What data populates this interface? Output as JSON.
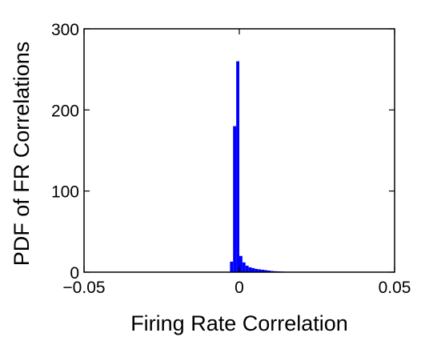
{
  "chart_data": {
    "type": "bar",
    "title": "",
    "xlabel": "Firing Rate Correlation",
    "ylabel": "PDF of FR Correlations",
    "xlim": [
      -0.05,
      0.05
    ],
    "ylim": [
      0,
      300
    ],
    "xticks": [
      -0.05,
      0,
      0.05
    ],
    "xtick_labels": [
      "−0.05",
      "0",
      "0.05"
    ],
    "yticks": [
      0,
      100,
      200,
      300
    ],
    "ytick_labels": [
      "0",
      "100",
      "200",
      "300"
    ],
    "bar_color": "#0000ff",
    "bins": [
      {
        "x0": -0.003,
        "x1": -0.002,
        "value": 13
      },
      {
        "x0": -0.002,
        "x1": -0.001,
        "value": 180
      },
      {
        "x0": -0.001,
        "x1": 0.0,
        "value": 260
      },
      {
        "x0": 0.0,
        "x1": 0.001,
        "value": 20
      },
      {
        "x0": 0.001,
        "x1": 0.002,
        "value": 12
      },
      {
        "x0": 0.002,
        "x1": 0.003,
        "value": 8
      },
      {
        "x0": 0.003,
        "x1": 0.004,
        "value": 6
      },
      {
        "x0": 0.004,
        "x1": 0.005,
        "value": 5
      },
      {
        "x0": 0.005,
        "x1": 0.006,
        "value": 4
      },
      {
        "x0": 0.006,
        "x1": 0.007,
        "value": 3.5
      },
      {
        "x0": 0.007,
        "x1": 0.008,
        "value": 3
      },
      {
        "x0": 0.008,
        "x1": 0.009,
        "value": 2.5
      },
      {
        "x0": 0.009,
        "x1": 0.01,
        "value": 2
      },
      {
        "x0": 0.01,
        "x1": 0.011,
        "value": 1.5
      },
      {
        "x0": 0.011,
        "x1": 0.012,
        "value": 1.2
      },
      {
        "x0": 0.012,
        "x1": 0.013,
        "value": 1
      },
      {
        "x0": 0.013,
        "x1": 0.014,
        "value": 0.8
      },
      {
        "x0": 0.014,
        "x1": 0.015,
        "value": 0.6
      },
      {
        "x0": 0.015,
        "x1": 0.016,
        "value": 0.5
      },
      {
        "x0": 0.016,
        "x1": 0.017,
        "value": 0.4
      },
      {
        "x0": 0.017,
        "x1": 0.018,
        "value": 0.3
      },
      {
        "x0": 0.018,
        "x1": 0.019,
        "value": 0.2
      },
      {
        "x0": 0.019,
        "x1": 0.02,
        "value": 0.1
      }
    ]
  }
}
